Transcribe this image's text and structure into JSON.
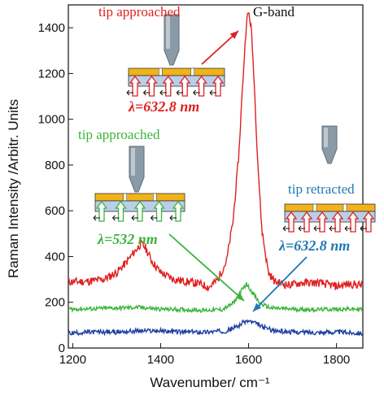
{
  "chart_data": {
    "type": "line",
    "xlabel": "Wavenumber/ cm⁻¹",
    "ylabel": "Raman Intensity /Arbitr. Units",
    "xlim": [
      1190,
      1860
    ],
    "ylim": [
      0,
      1500
    ],
    "x_ticks": [
      1200,
      1400,
      1600,
      1800
    ],
    "y_ticks": [
      0,
      200,
      400,
      600,
      800,
      1000,
      1200,
      1400
    ],
    "grid": false,
    "series": [
      {
        "color": "#e02020",
        "x": [
          1190,
          1230,
          1270,
          1300,
          1320,
          1340,
          1355,
          1365,
          1380,
          1400,
          1430,
          1460,
          1490,
          1510,
          1530,
          1550,
          1565,
          1578,
          1588,
          1595,
          1600,
          1606,
          1612,
          1620,
          1630,
          1645,
          1660,
          1690,
          1720,
          1760,
          1800,
          1830,
          1860
        ],
        "y": [
          290,
          290,
          300,
          330,
          370,
          420,
          455,
          440,
          380,
          330,
          300,
          290,
          280,
          265,
          300,
          380,
          560,
          850,
          1200,
          1420,
          1470,
          1400,
          1200,
          850,
          520,
          330,
          290,
          275,
          285,
          285,
          270,
          280,
          275
        ]
      },
      {
        "color": "#3cb43c",
        "x": [
          1190,
          1250,
          1300,
          1350,
          1400,
          1450,
          1500,
          1540,
          1565,
          1580,
          1595,
          1610,
          1625,
          1650,
          1700,
          1750,
          1800,
          1860
        ],
        "y": [
          170,
          172,
          175,
          178,
          170,
          168,
          165,
          168,
          195,
          240,
          280,
          240,
          195,
          175,
          170,
          168,
          170,
          170
        ]
      },
      {
        "color": "#1f3fa0",
        "x": [
          1190,
          1250,
          1300,
          1350,
          1400,
          1450,
          1500,
          1550,
          1575,
          1590,
          1600,
          1615,
          1635,
          1660,
          1700,
          1750,
          1800,
          1860
        ],
        "y": [
          65,
          70,
          70,
          75,
          75,
          70,
          70,
          75,
          95,
          115,
          118,
          108,
          90,
          75,
          70,
          68,
          70,
          65
        ]
      }
    ],
    "annotations": [
      {
        "text": "tip approached",
        "color": "#e02020"
      },
      {
        "text": "G-band",
        "color": "#111111"
      },
      {
        "text": "λ=632.8 nm",
        "color": "#e02020"
      },
      {
        "text": "tip approached",
        "color": "#3cb43c"
      },
      {
        "text": "λ=532 nm",
        "color": "#3cb43c"
      },
      {
        "text": "tip retracted",
        "color": "#1f78b4"
      },
      {
        "text": "λ=632.8 nm",
        "color": "#1f78b4"
      }
    ]
  }
}
